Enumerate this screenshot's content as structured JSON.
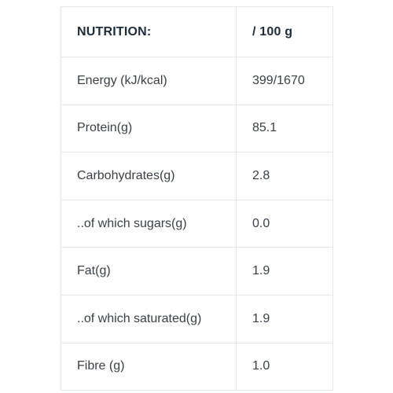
{
  "table": {
    "header": {
      "nutrient": "NUTRITION:",
      "per_amount": "/ 100 g"
    },
    "rows": [
      {
        "nutrient": "Energy (kJ/kcal)",
        "value": "399/1670"
      },
      {
        "nutrient": "Protein(g)",
        "value": "85.1"
      },
      {
        "nutrient": "Carbohydrates(g)",
        "value": "2.8"
      },
      {
        "nutrient": "..of which sugars(g)",
        "value": "0.0"
      },
      {
        "nutrient": "Fat(g)",
        "value": "1.9"
      },
      {
        "nutrient": "..of which saturated(g)",
        "value": "1.9"
      },
      {
        "nutrient": "Fibre (g)",
        "value": "1.0"
      }
    ]
  },
  "colors": {
    "border": "#e3e6ea",
    "header_text": "#1e2c3a",
    "body_text": "#3a3f45"
  }
}
